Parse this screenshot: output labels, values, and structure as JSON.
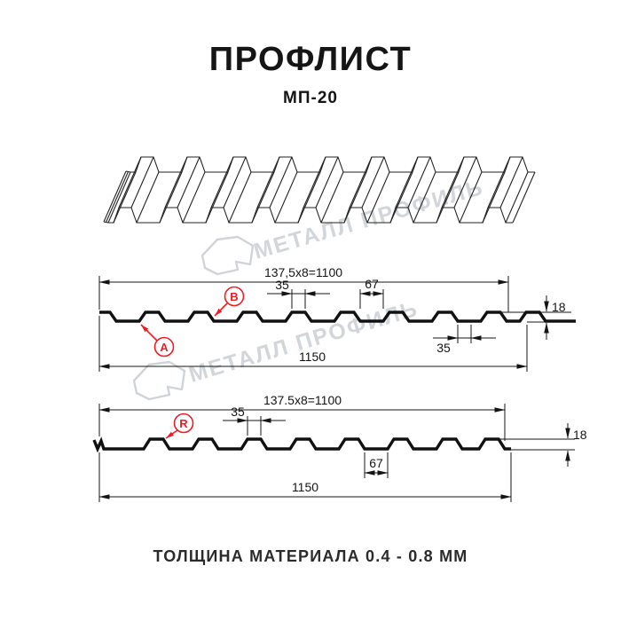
{
  "header": {
    "title": "ПРОФЛИСТ",
    "subtitle": "МП-20"
  },
  "watermark": {
    "text": "МЕТАЛЛ ПРОФИЛЬ"
  },
  "s1": {
    "width_formula": "137,5x8=1100",
    "rib_top": "35",
    "valley": "67",
    "height": "18",
    "total_width": "1150",
    "edge_valley": "35",
    "label_a": "А",
    "label_b": "В"
  },
  "s2": {
    "width_formula": "137.5x8=1100",
    "rib_top": "35",
    "valley": "67",
    "height": "18",
    "total_width": "1150",
    "label_r": "R"
  },
  "footer": {
    "text": "ТОЛЩИНА МАТЕРИАЛА 0.4 - 0.8 ММ"
  },
  "colors": {
    "red": "#ee1d23",
    "line": "#141414",
    "watermark": "#d0d4d8"
  }
}
